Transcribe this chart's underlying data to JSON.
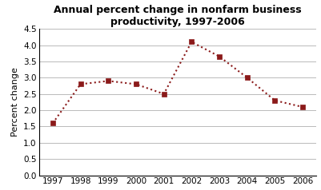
{
  "title": "Annual percent change in nonfarm business\nproductivity, 1997-2006",
  "ylabel": "Percent change",
  "years": [
    1997,
    1998,
    1999,
    2000,
    2001,
    2002,
    2003,
    2004,
    2005,
    2006
  ],
  "values": [
    1.6,
    2.8,
    2.9,
    2.8,
    2.5,
    4.1,
    3.65,
    3.0,
    2.3,
    2.1
  ],
  "line_color": "#8B1A1A",
  "marker": "s",
  "marker_color": "#8B1A1A",
  "ylim": [
    0.0,
    4.5
  ],
  "yticks": [
    0.0,
    0.5,
    1.0,
    1.5,
    2.0,
    2.5,
    3.0,
    3.5,
    4.0,
    4.5
  ],
  "background_color": "#ffffff",
  "grid_color": "#b0b0b0",
  "title_fontsize": 9,
  "axis_label_fontsize": 8,
  "tick_fontsize": 7.5
}
